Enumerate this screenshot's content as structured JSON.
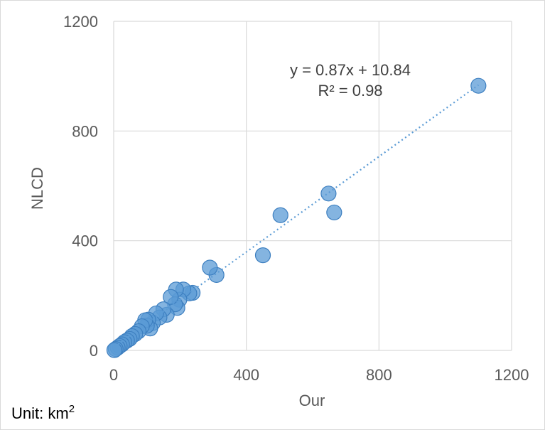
{
  "chart_data": {
    "type": "scatter",
    "xlabel": "Our",
    "ylabel": "NLCD",
    "xlim": [
      0,
      1200
    ],
    "ylim": [
      0,
      1200
    ],
    "xticks": [
      0,
      400,
      800,
      1200
    ],
    "yticks": [
      0,
      400,
      800,
      1200
    ],
    "grid": true,
    "trendline": {
      "type": "linear",
      "slope": 0.87,
      "intercept": 10.84,
      "equation": "y = 0.87x + 10.84",
      "r2_label": "R² = 0.98",
      "color": "#5b9bd5"
    },
    "marker_color": "#5b9bd5",
    "points": [
      {
        "x": 1100,
        "y": 965
      },
      {
        "x": 665,
        "y": 503
      },
      {
        "x": 648,
        "y": 572
      },
      {
        "x": 503,
        "y": 493
      },
      {
        "x": 450,
        "y": 347
      },
      {
        "x": 310,
        "y": 275
      },
      {
        "x": 290,
        "y": 302
      },
      {
        "x": 238,
        "y": 210
      },
      {
        "x": 228,
        "y": 208
      },
      {
        "x": 210,
        "y": 222
      },
      {
        "x": 198,
        "y": 185
      },
      {
        "x": 192,
        "y": 155
      },
      {
        "x": 188,
        "y": 222
      },
      {
        "x": 185,
        "y": 168
      },
      {
        "x": 172,
        "y": 195
      },
      {
        "x": 160,
        "y": 130
      },
      {
        "x": 150,
        "y": 150
      },
      {
        "x": 138,
        "y": 120
      },
      {
        "x": 128,
        "y": 135
      },
      {
        "x": 118,
        "y": 100
      },
      {
        "x": 110,
        "y": 80
      },
      {
        "x": 104,
        "y": 112
      },
      {
        "x": 100,
        "y": 90
      },
      {
        "x": 95,
        "y": 110
      },
      {
        "x": 85,
        "y": 88
      },
      {
        "x": 75,
        "y": 70
      },
      {
        "x": 65,
        "y": 60
      },
      {
        "x": 55,
        "y": 52
      },
      {
        "x": 48,
        "y": 42
      },
      {
        "x": 40,
        "y": 36
      },
      {
        "x": 32,
        "y": 30
      },
      {
        "x": 25,
        "y": 22
      },
      {
        "x": 18,
        "y": 16
      },
      {
        "x": 12,
        "y": 10
      },
      {
        "x": 6,
        "y": 5
      },
      {
        "x": 2,
        "y": 1
      }
    ]
  },
  "unit_note": {
    "prefix": "Unit:",
    "unit": "km",
    "exponent": "2"
  }
}
